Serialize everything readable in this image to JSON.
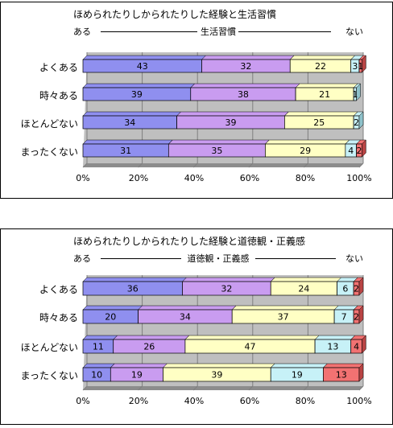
{
  "chart_data": [
    {
      "type": "bar",
      "stacked": "horizontal-100",
      "title": "ほめられたりしかられたりした経験と生活習慣",
      "axis_left": "ある",
      "axis_mid": "生活習慣",
      "axis_right": "ない",
      "categories": [
        "よくある",
        "時々ある",
        "ほとんどない",
        "まったくない"
      ],
      "values": [
        [
          43,
          32,
          22,
          3,
          1
        ],
        [
          39,
          38,
          21,
          1,
          0
        ],
        [
          34,
          39,
          25,
          2,
          0
        ],
        [
          31,
          35,
          29,
          4,
          2
        ]
      ],
      "labels": [
        [
          "43",
          "32",
          "22",
          "3",
          "1"
        ],
        [
          "39",
          "38",
          "21",
          "1",
          ""
        ],
        [
          "34",
          "39",
          "25",
          "2",
          ""
        ],
        [
          "31",
          "35",
          "29",
          "4",
          "2"
        ]
      ],
      "xticks": [
        "0%",
        "20%",
        "40%",
        "60%",
        "80%",
        "100%"
      ],
      "xlim": [
        0,
        100
      ],
      "grid": true
    },
    {
      "type": "bar",
      "stacked": "horizontal-100",
      "title": "ほめられたりしかられたりした経験と道徳観・正義感",
      "axis_left": "ある",
      "axis_mid": "道徳観・正義感",
      "axis_right": "ない",
      "categories": [
        "よくある",
        "時々ある",
        "ほとんどない",
        "まったくない"
      ],
      "values": [
        [
          36,
          32,
          24,
          6,
          2
        ],
        [
          20,
          34,
          37,
          7,
          2
        ],
        [
          11,
          26,
          47,
          13,
          4
        ],
        [
          10,
          19,
          39,
          19,
          13
        ]
      ],
      "labels": [
        [
          "36",
          "32",
          "24",
          "6",
          "2"
        ],
        [
          "20",
          "34",
          "37",
          "7",
          "2"
        ],
        [
          "11",
          "26",
          "47",
          "13",
          "4"
        ],
        [
          "10",
          "19",
          "39",
          "19",
          "13"
        ]
      ],
      "xticks": [
        "0%",
        "20%",
        "40%",
        "60%",
        "80%",
        "100%"
      ],
      "xlim": [
        0,
        100
      ],
      "grid": true
    }
  ],
  "colors": {
    "segments": [
      "#8f8fef",
      "#c99cf0",
      "#ffffc4",
      "#c7f1f7",
      "#f27272"
    ],
    "segment_sides": [
      "#5c5cc0",
      "#9a6cc4",
      "#d2d28f",
      "#8fc2cb",
      "#b94444"
    ],
    "plot_bg": "#bfbfbf",
    "grid": "#7f7f7f"
  }
}
